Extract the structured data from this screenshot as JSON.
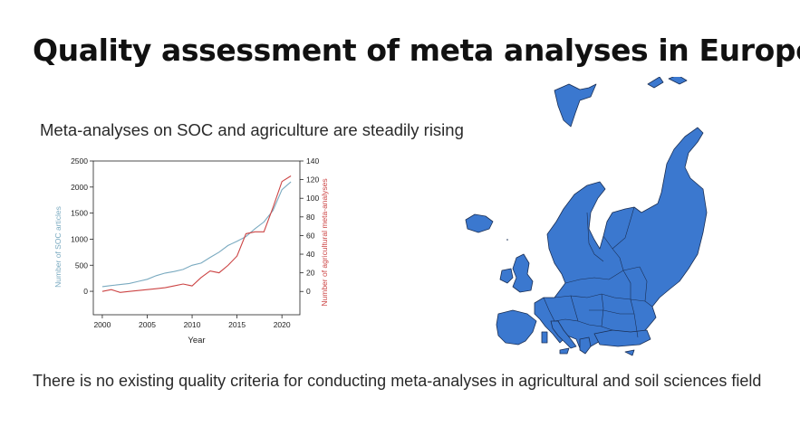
{
  "slide": {
    "title": "Quality assessment of meta analyses in Europe",
    "subtitle": "Meta-analyses on SOC and agriculture are steadily rising",
    "footer": "There is no existing quality criteria for conducting meta-analyses in agricultural and soil sciences field"
  },
  "colors": {
    "soc_series": "#7aaac0",
    "meta_series": "#cc4444",
    "map_fill": "#3b78cf",
    "map_stroke": "#1a2f55"
  },
  "map": {
    "icon": "europe-map-icon"
  },
  "chart_data": {
    "type": "line",
    "xlabel": "Year",
    "ylabel_left": "Number of SOC articles",
    "ylabel_right": "Number of agricultural meta-analyses",
    "xlim": [
      1999,
      2022
    ],
    "ylim_left": [
      -450,
      2500
    ],
    "ylim_right": [
      -25,
      140
    ],
    "x_ticks": [
      "2000",
      "2005",
      "2010",
      "2015",
      "2020"
    ],
    "y_left_ticks": [
      "0",
      "500",
      "1000",
      "1500",
      "2000",
      "2500"
    ],
    "y_right_ticks": [
      "0",
      "20",
      "40",
      "60",
      "80",
      "100",
      "120",
      "140"
    ],
    "grid": false,
    "series": [
      {
        "name": "Number of SOC articles",
        "axis": "left",
        "x": [
          2000,
          2001,
          2002,
          2003,
          2004,
          2005,
          2006,
          2007,
          2008,
          2009,
          2010,
          2011,
          2012,
          2013,
          2014,
          2015,
          2016,
          2017,
          2018,
          2019,
          2020,
          2021
        ],
        "values": [
          90,
          110,
          130,
          150,
          190,
          230,
          300,
          350,
          380,
          420,
          500,
          540,
          650,
          750,
          880,
          960,
          1050,
          1200,
          1330,
          1550,
          1950,
          2100
        ]
      },
      {
        "name": "Number of agricultural meta-analyses",
        "axis": "right",
        "x": [
          2000,
          2001,
          2002,
          2003,
          2004,
          2005,
          2006,
          2007,
          2008,
          2009,
          2010,
          2011,
          2012,
          2013,
          2014,
          2015,
          2016,
          2017,
          2018,
          2019,
          2020,
          2021
        ],
        "values": [
          0,
          2,
          -1,
          0,
          1,
          2,
          3,
          4,
          6,
          8,
          6,
          15,
          22,
          20,
          28,
          38,
          62,
          64,
          64,
          90,
          118,
          124
        ]
      }
    ]
  }
}
